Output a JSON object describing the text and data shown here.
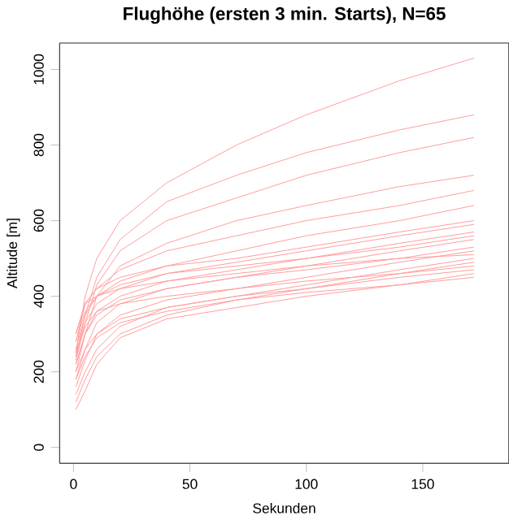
{
  "chart_data": {
    "type": "line",
    "title": "Flughöhe (ersten 3 min. Starts), N=65",
    "xlabel": "Sekunden",
    "ylabel": "Altitude [m]",
    "xlim": [
      -6,
      187
    ],
    "ylim": [
      -42,
      1070
    ],
    "xticks": [
      0,
      50,
      100,
      150
    ],
    "yticks": [
      0,
      200,
      400,
      600,
      800,
      1000
    ],
    "grid": false,
    "marker": "none",
    "line_style": "solid",
    "x": [
      1,
      5,
      10,
      20,
      40,
      70,
      100,
      140,
      172
    ],
    "series": [
      {
        "color": "#ff9c9c",
        "values": [
          250,
          400,
          500,
          600,
          700,
          800,
          880,
          970,
          1030
        ]
      },
      {
        "color": "#ff9c9c",
        "values": [
          240,
          350,
          450,
          550,
          650,
          720,
          780,
          840,
          880
        ]
      },
      {
        "color": "#ff9c9c",
        "values": [
          230,
          330,
          430,
          520,
          600,
          660,
          720,
          780,
          820
        ]
      },
      {
        "color": "#ff9c9c",
        "values": [
          220,
          300,
          400,
          480,
          540,
          600,
          640,
          690,
          720
        ]
      },
      {
        "color": "#ff9c9c",
        "values": [
          280,
          380,
          420,
          470,
          520,
          560,
          600,
          640,
          680
        ]
      },
      {
        "color": "#ff9c9c",
        "values": [
          260,
          350,
          400,
          440,
          480,
          520,
          560,
          600,
          640
        ]
      },
      {
        "color": "#ff9c9c",
        "values": [
          300,
          380,
          420,
          450,
          480,
          500,
          530,
          570,
          600
        ]
      },
      {
        "color": "#ff9c9c",
        "values": [
          250,
          330,
          380,
          420,
          460,
          490,
          520,
          560,
          590
        ]
      },
      {
        "color": "#ff9c9c",
        "values": [
          200,
          300,
          360,
          400,
          440,
          470,
          500,
          540,
          570
        ]
      },
      {
        "color": "#ff9c9c",
        "values": [
          280,
          360,
          400,
          430,
          460,
          480,
          500,
          530,
          560
        ]
      },
      {
        "color": "#ff9c9c",
        "values": [
          180,
          260,
          330,
          380,
          420,
          450,
          480,
          520,
          550
        ]
      },
      {
        "color": "#ff9c9c",
        "values": [
          220,
          300,
          350,
          390,
          420,
          450,
          470,
          500,
          530
        ]
      },
      {
        "color": "#ff9c9c",
        "values": [
          160,
          230,
          300,
          350,
          390,
          420,
          450,
          490,
          520
        ]
      },
      {
        "color": "#ff9c9c",
        "values": [
          300,
          380,
          400,
          420,
          440,
          460,
          480,
          500,
          510
        ]
      },
      {
        "color": "#ff9c9c",
        "values": [
          140,
          200,
          260,
          320,
          370,
          400,
          430,
          470,
          500
        ]
      },
      {
        "color": "#ff9c9c",
        "values": [
          120,
          180,
          240,
          300,
          350,
          390,
          420,
          460,
          490
        ]
      },
      {
        "color": "#ff9c9c",
        "values": [
          200,
          260,
          300,
          340,
          370,
          400,
          420,
          450,
          470
        ]
      },
      {
        "color": "#ff9c9c",
        "values": [
          100,
          150,
          220,
          290,
          340,
          370,
          400,
          430,
          450
        ]
      },
      {
        "color": "#ff9c9c",
        "values": [
          240,
          320,
          360,
          380,
          400,
          420,
          440,
          460,
          480
        ]
      },
      {
        "color": "#ff9c9c",
        "values": [
          180,
          240,
          290,
          330,
          360,
          390,
          410,
          430,
          460
        ]
      }
    ]
  }
}
